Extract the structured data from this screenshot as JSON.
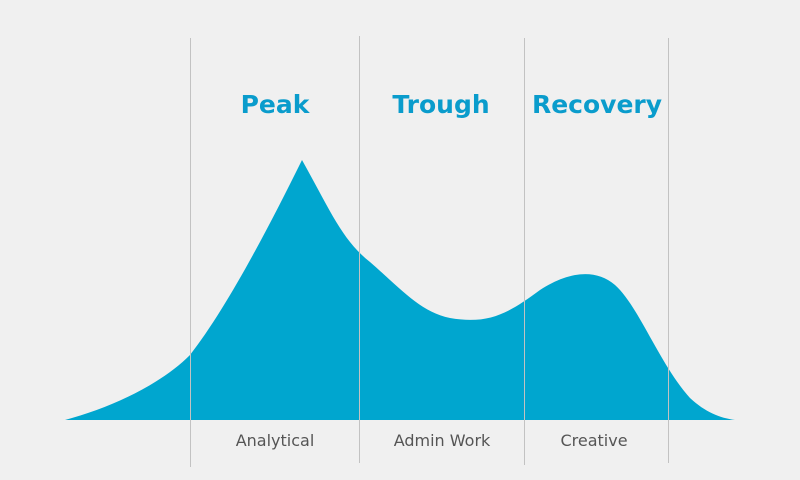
{
  "colors": {
    "background": "#f0f0f0",
    "curve_fill": "#00a6cf",
    "heading": "#0a9ccc",
    "divider": "#c2c2c2",
    "label": "#555555"
  },
  "phases": [
    {
      "title": "Peak",
      "task": "Analytical"
    },
    {
      "title": "Trough",
      "task": "Admin Work"
    },
    {
      "title": "Recovery",
      "task": "Creative"
    }
  ]
}
